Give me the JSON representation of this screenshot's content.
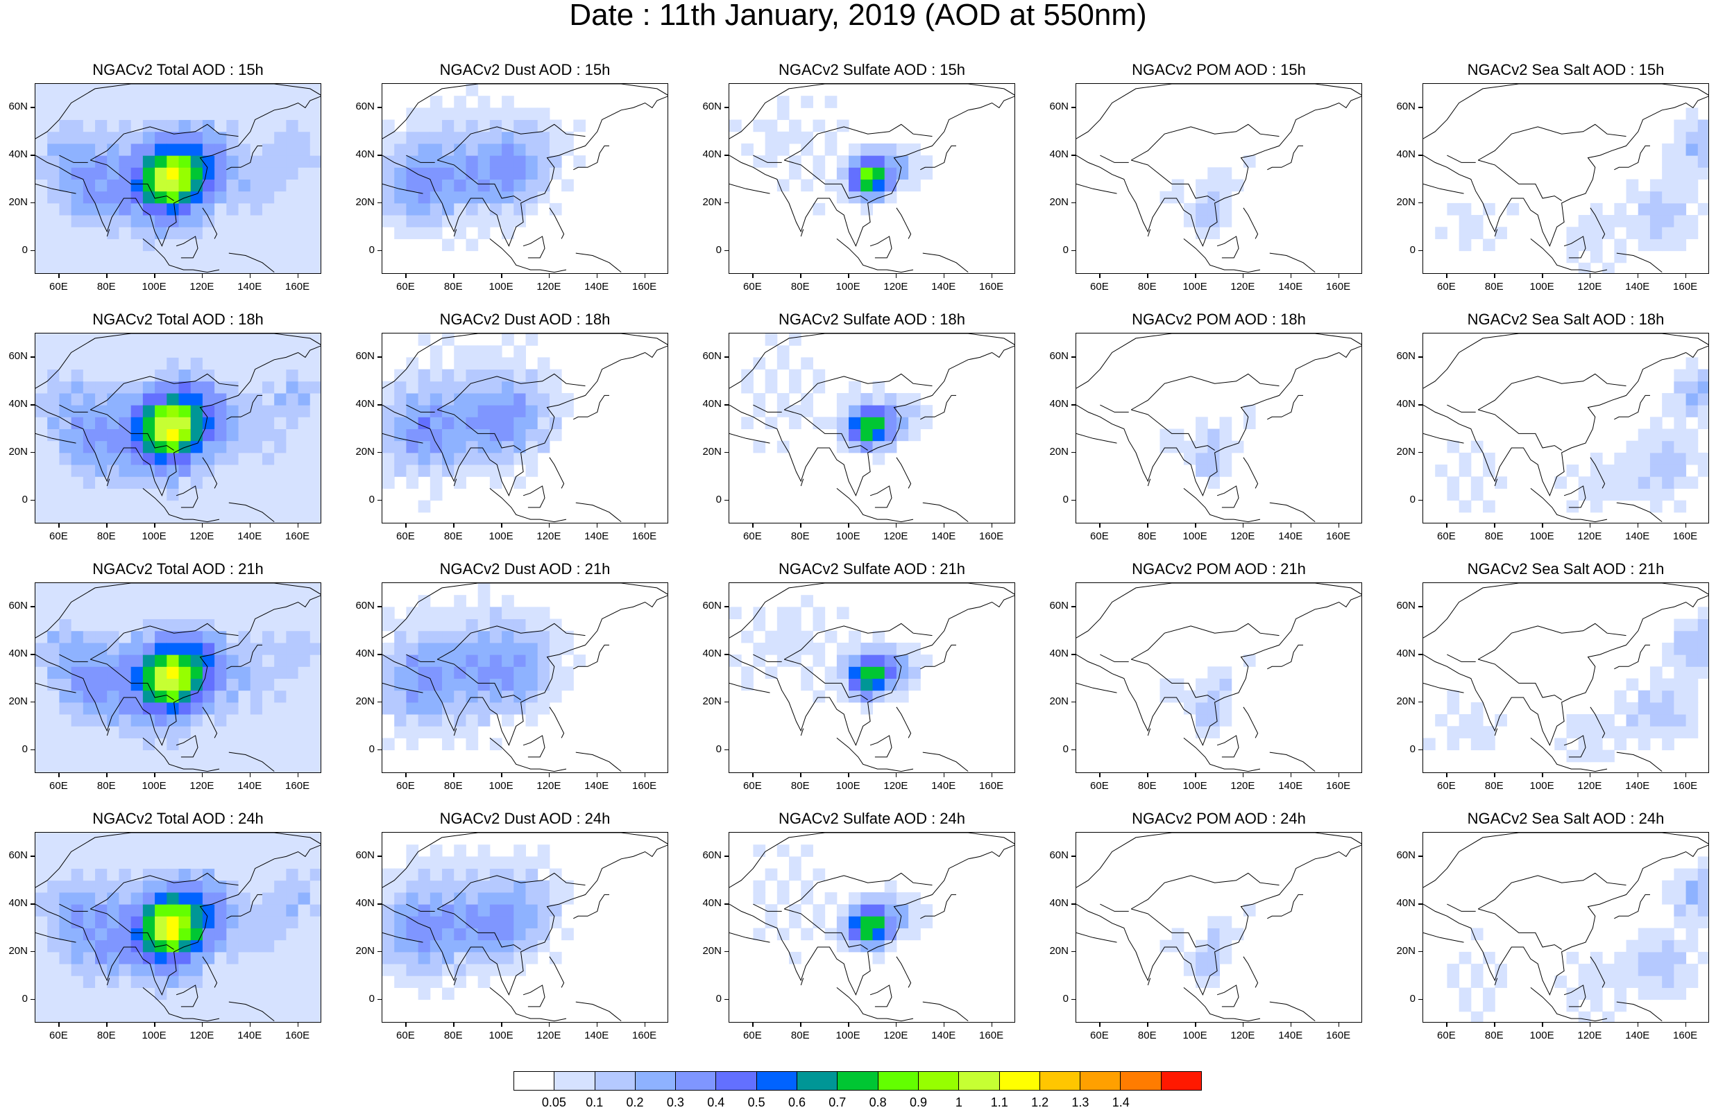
{
  "title": "Date : 11th January, 2019 (AOD at 550nm)",
  "panels": [
    [
      "NGACv2 Total AOD : 15h",
      "NGACv2 Dust AOD : 15h",
      "NGACv2 Sulfate AOD : 15h",
      "NGACv2 POM AOD : 15h",
      "NGACv2 Sea Salt AOD : 15h"
    ],
    [
      "NGACv2 Total AOD : 18h",
      "NGACv2 Dust AOD : 18h",
      "NGACv2 Sulfate AOD : 18h",
      "NGACv2 POM AOD : 18h",
      "NGACv2 Sea Salt AOD : 18h"
    ],
    [
      "NGACv2 Total AOD : 21h",
      "NGACv2 Dust AOD : 21h",
      "NGACv2 Sulfate AOD : 21h",
      "NGACv2 POM AOD : 21h",
      "NGACv2 Sea Salt AOD : 21h"
    ],
    [
      "NGACv2 Total AOD : 24h",
      "NGACv2 Dust AOD : 24h",
      "NGACv2 Sulfate AOD : 24h",
      "NGACv2 POM AOD : 24h",
      "NGACv2 Sea Salt  AOD : 24h"
    ]
  ],
  "lat_labels": [
    "60N",
    "40N",
    "20N",
    "0"
  ],
  "lon_labels": [
    "60E",
    "80E",
    "100E",
    "120E",
    "140E",
    "160E"
  ],
  "colorbar": {
    "labels": [
      "0.05",
      "0.1",
      "0.2",
      "0.3",
      "0.4",
      "0.5",
      "0.6",
      "0.7",
      "0.8",
      "0.9",
      "1",
      "1.1",
      "1.2",
      "1.3",
      "1.4"
    ],
    "colors": [
      "#ffffff",
      "#d6e2ff",
      "#b5c9ff",
      "#8eb2ff",
      "#7f96ff",
      "#6370ff",
      "#0063ff",
      "#009696",
      "#00c633",
      "#63ff00",
      "#96ff00",
      "#c6ff33",
      "#ffff00",
      "#ffc600",
      "#ffa000",
      "#ff7c00",
      "#ff1900"
    ]
  }
}
